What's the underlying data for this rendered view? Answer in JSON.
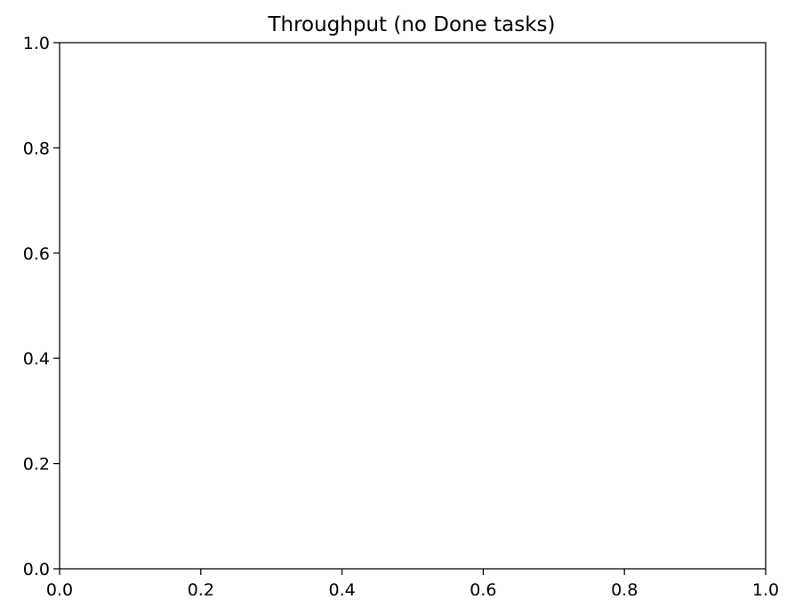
{
  "chart_data": {
    "type": "line",
    "title": "Throughput (no Done tasks)",
    "xlabel": "",
    "ylabel": "",
    "xlim": [
      0.0,
      1.0
    ],
    "ylim": [
      0.0,
      1.0
    ],
    "x_ticks": [
      0.0,
      0.2,
      0.4,
      0.6,
      0.8,
      1.0
    ],
    "y_ticks": [
      0.0,
      0.2,
      0.4,
      0.6,
      0.8,
      1.0
    ],
    "x_tick_labels": [
      "0.0",
      "0.2",
      "0.4",
      "0.6",
      "0.8",
      "1.0"
    ],
    "y_tick_labels": [
      "0.0",
      "0.2",
      "0.4",
      "0.6",
      "0.8",
      "1.0"
    ],
    "series": [],
    "grid": false,
    "legend": "none"
  }
}
